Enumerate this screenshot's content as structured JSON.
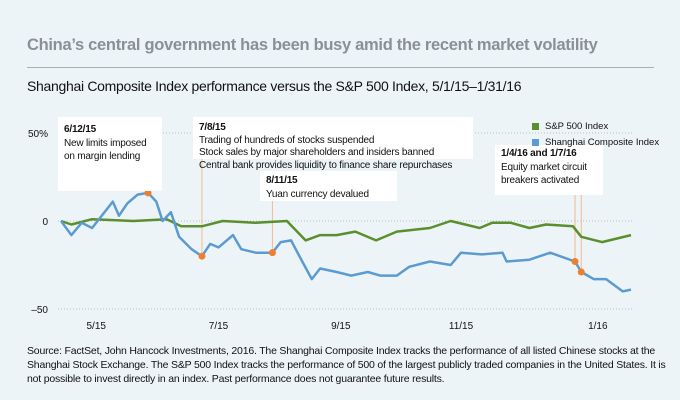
{
  "header": {
    "title": "China’s central government has been busy amid the recent market volatility",
    "subtitle": "Shanghai Composite Index performance versus the S&P 500 Index, 5/1/15–1/31/16"
  },
  "chart_data": {
    "type": "line",
    "title": "Shanghai Composite Index performance versus the S&P 500 Index, 5/1/15–1/31/16",
    "xlim": [
      "2015-05-01",
      "2016-01-31"
    ],
    "ylim": [
      -50,
      50
    ],
    "grid": true,
    "y_ticks": [
      {
        "value": 50,
        "label": "50%"
      },
      {
        "value": 0,
        "label": "0"
      },
      {
        "value": -50,
        "label": "–50"
      }
    ],
    "x_ticks": [
      {
        "date": "2015-05-18",
        "label": "5/15"
      },
      {
        "date": "2015-07-16",
        "label": "7/15"
      },
      {
        "date": "2015-09-13",
        "label": "9/15"
      },
      {
        "date": "2015-11-10",
        "label": "11/15"
      },
      {
        "date": "2016-01-15",
        "label": "1/16"
      }
    ],
    "legend_position": "top-right",
    "series": [
      {
        "name": "S&P 500 Index",
        "color": "#5a8f2e",
        "points": [
          [
            "2015-05-01",
            0
          ],
          [
            "2015-05-06",
            -2
          ],
          [
            "2015-05-16",
            1
          ],
          [
            "2015-06-05",
            0
          ],
          [
            "2015-06-21",
            1
          ],
          [
            "2015-06-28",
            -3
          ],
          [
            "2015-07-08",
            -3
          ],
          [
            "2015-07-18",
            0
          ],
          [
            "2015-08-03",
            -1
          ],
          [
            "2015-08-18",
            0
          ],
          [
            "2015-08-27",
            -11
          ],
          [
            "2015-09-03",
            -8
          ],
          [
            "2015-09-11",
            -8
          ],
          [
            "2015-09-20",
            -6
          ],
          [
            "2015-09-30",
            -11
          ],
          [
            "2015-10-10",
            -6
          ],
          [
            "2015-10-26",
            -4
          ],
          [
            "2015-11-05",
            0
          ],
          [
            "2015-11-19",
            -4
          ],
          [
            "2015-11-25",
            -1
          ],
          [
            "2015-12-04",
            -1
          ],
          [
            "2015-12-13",
            -4
          ],
          [
            "2015-12-21",
            -2
          ],
          [
            "2016-01-03",
            -3
          ],
          [
            "2016-01-07",
            -9
          ],
          [
            "2016-01-17",
            -12
          ],
          [
            "2016-01-31",
            -8
          ]
        ]
      },
      {
        "name": "Shanghai Composite Index",
        "color": "#5b9bd0",
        "points": [
          [
            "2015-05-01",
            0
          ],
          [
            "2015-05-06",
            -8
          ],
          [
            "2015-05-11",
            -1
          ],
          [
            "2015-05-16",
            -4
          ],
          [
            "2015-05-26",
            11
          ],
          [
            "2015-05-29",
            3
          ],
          [
            "2015-06-02",
            10
          ],
          [
            "2015-06-07",
            15
          ],
          [
            "2015-06-12",
            16
          ],
          [
            "2015-06-16",
            11
          ],
          [
            "2015-06-19",
            0
          ],
          [
            "2015-06-23",
            5
          ],
          [
            "2015-06-27",
            -9
          ],
          [
            "2015-07-03",
            -16
          ],
          [
            "2015-07-08",
            -20
          ],
          [
            "2015-07-12",
            -13
          ],
          [
            "2015-07-16",
            -15
          ],
          [
            "2015-07-23",
            -8
          ],
          [
            "2015-07-27",
            -16
          ],
          [
            "2015-08-03",
            -18
          ],
          [
            "2015-08-11",
            -18
          ],
          [
            "2015-08-15",
            -12
          ],
          [
            "2015-08-20",
            -11
          ],
          [
            "2015-08-24",
            -20
          ],
          [
            "2015-08-30",
            -33
          ],
          [
            "2015-09-03",
            -27
          ],
          [
            "2015-09-11",
            -29
          ],
          [
            "2015-09-18",
            -31
          ],
          [
            "2015-09-26",
            -29
          ],
          [
            "2015-10-02",
            -31
          ],
          [
            "2015-10-10",
            -31
          ],
          [
            "2015-10-16",
            -26
          ],
          [
            "2015-10-26",
            -23
          ],
          [
            "2015-11-05",
            -25
          ],
          [
            "2015-11-10",
            -18
          ],
          [
            "2015-11-20",
            -19
          ],
          [
            "2015-11-30",
            -18
          ],
          [
            "2015-12-02",
            -23
          ],
          [
            "2015-12-13",
            -22
          ],
          [
            "2015-12-23",
            -18
          ],
          [
            "2016-01-04",
            -23
          ],
          [
            "2016-01-07",
            -29
          ],
          [
            "2016-01-13",
            -33
          ],
          [
            "2016-01-19",
            -33
          ],
          [
            "2016-01-27",
            -40
          ],
          [
            "2016-01-31",
            -39
          ]
        ]
      }
    ],
    "event_color": "#f07f2c",
    "annotations": [
      {
        "date_label": "6/12/15",
        "lines": [
          "New limits imposed",
          "on margin lending"
        ],
        "markers": [
          [
            "2015-06-12",
            16
          ]
        ]
      },
      {
        "date_label": "7/8/15",
        "lines": [
          "Trading of hundreds of stocks suspended",
          "Stock sales by major shareholders and insiders banned",
          "Central bank provides liquidity to finance share repurchases"
        ],
        "markers": [
          [
            "2015-07-08",
            -20
          ]
        ]
      },
      {
        "date_label": "8/11/15",
        "lines": [
          "Yuan currency devalued"
        ],
        "markers": [
          [
            "2015-08-11",
            -18
          ]
        ]
      },
      {
        "date_label": "1/4/16 and 1/7/16",
        "lines": [
          "Equity market circuit",
          "breakers activated"
        ],
        "markers": [
          [
            "2016-01-04",
            -23
          ],
          [
            "2016-01-07",
            -29
          ]
        ]
      }
    ]
  },
  "source": "Source: FactSet, John Hancock Investments, 2016. The Shanghai Composite Index tracks the performance of all listed Chinese stocks at the Shanghai Stock Exchange. The S&P 500 Index tracks the performance of 500 of the largest publicly traded companies in the United States. It is not possible to invest directly in an index. Past performance does not guarantee future results."
}
